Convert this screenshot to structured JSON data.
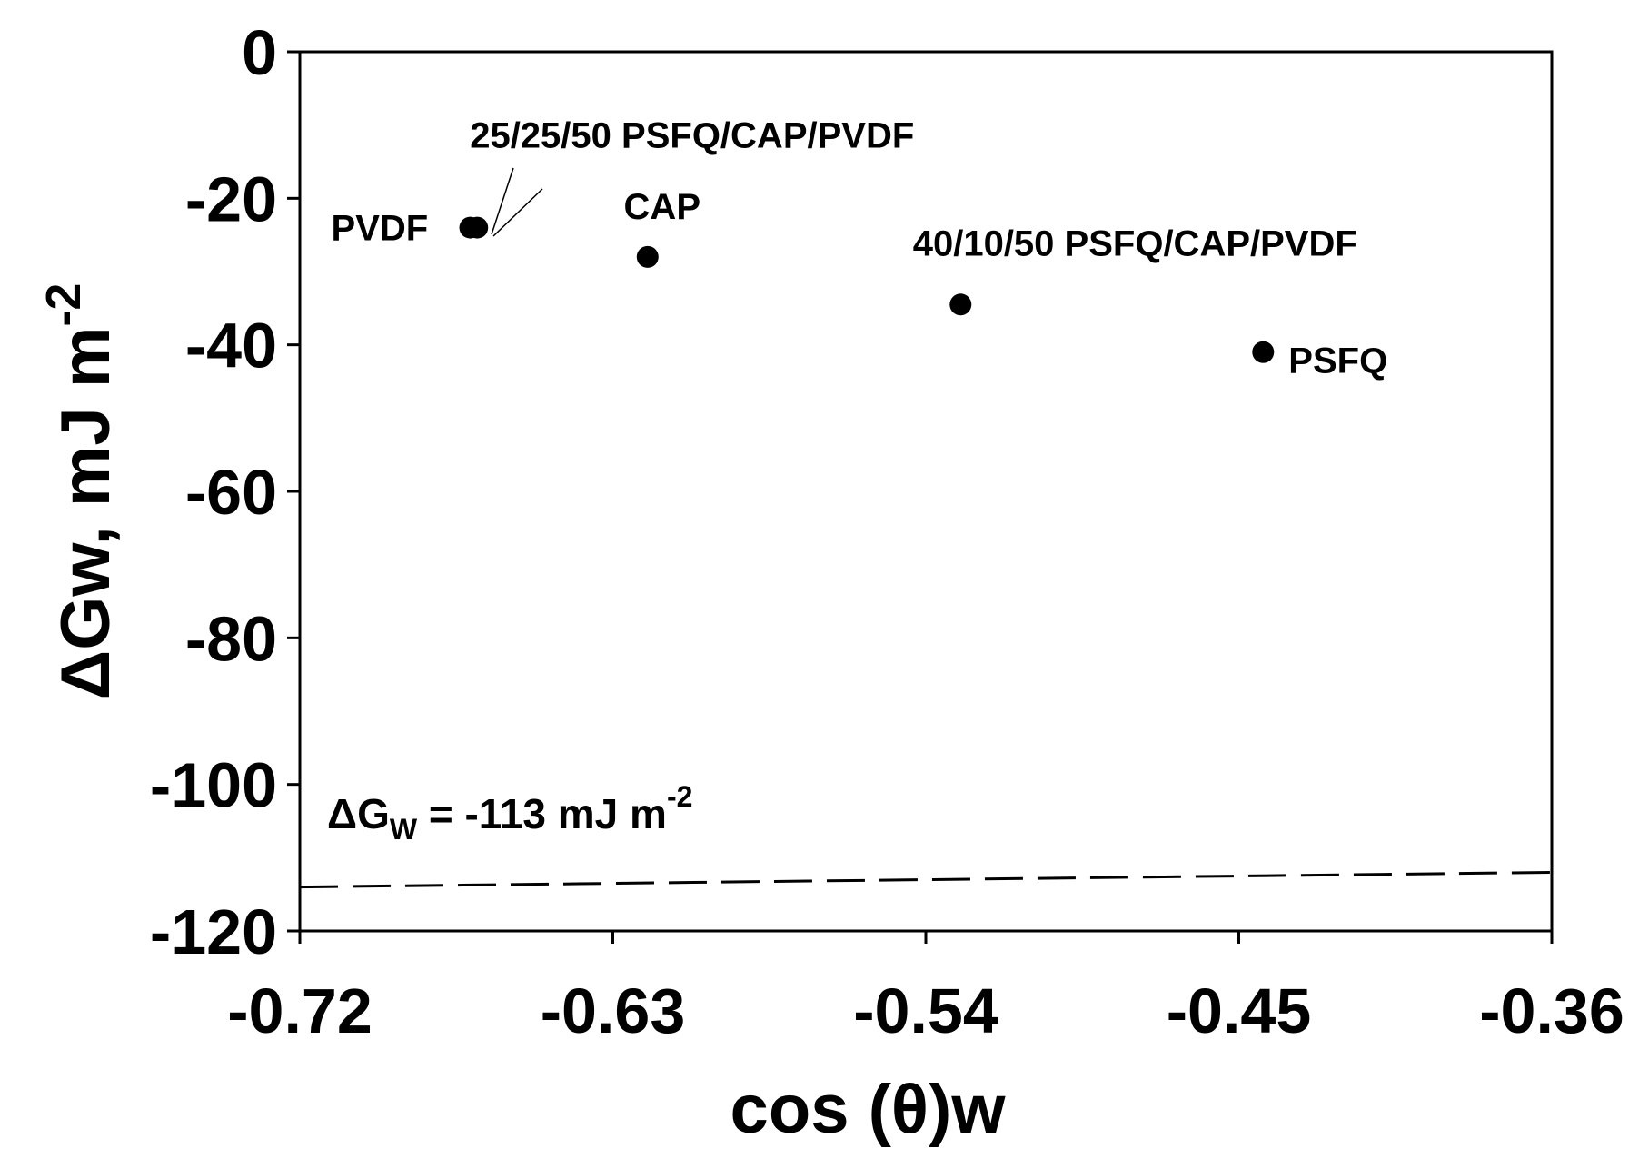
{
  "chart_data": {
    "type": "scatter",
    "xlabel": "cos (θ)w",
    "ylabel": "ΔGw, mJ m",
    "ylabel_superscript": "-2",
    "xlim": [
      -0.72,
      -0.36
    ],
    "ylim": [
      -120,
      0
    ],
    "x_ticks": [
      -0.72,
      -0.63,
      -0.54,
      -0.45,
      -0.36
    ],
    "x_tick_labels": [
      "-0.72",
      "-0.63",
      "-0.54",
      "-0.45",
      "-0.36"
    ],
    "y_ticks": [
      0,
      -20,
      -40,
      -60,
      -80,
      -100,
      -120
    ],
    "y_tick_labels": [
      "0",
      "-20",
      "-40",
      "-60",
      "-80",
      "-100",
      "-120"
    ],
    "grid": false,
    "legend": "none",
    "points": [
      {
        "label": "PVDF",
        "x": -0.671,
        "y": -24
      },
      {
        "label": "25/25/50 PSFQ/CAP/PVDF",
        "x": -0.669,
        "y": -24
      },
      {
        "label": "CAP",
        "x": -0.62,
        "y": -28
      },
      {
        "label": "40/10/50 PSFQ/CAP/PVDF",
        "x": -0.53,
        "y": -34.5
      },
      {
        "label": "PSFQ",
        "x": -0.443,
        "y": -41
      }
    ],
    "reference_line": {
      "label_main": "ΔG",
      "label_sub": "W",
      "label_rest": " = -113 mJ m",
      "label_superscript": "-2",
      "y_start": -114,
      "y_end": -112,
      "style": "dashed"
    }
  }
}
